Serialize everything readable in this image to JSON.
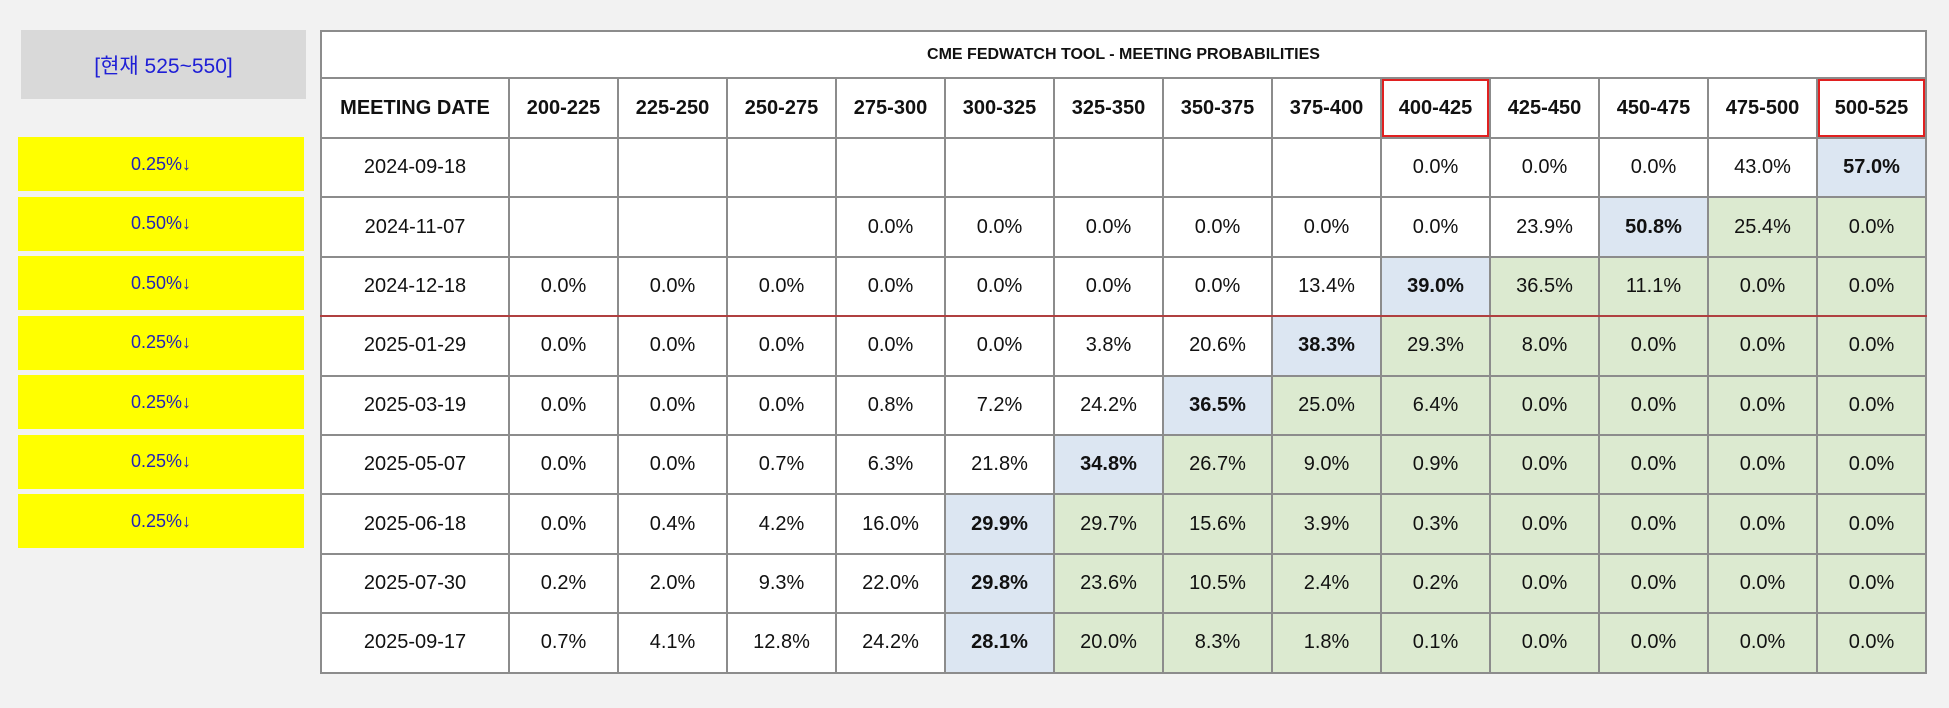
{
  "current_label": "[현재 525~550]",
  "cuts": [
    "0.25%↓",
    "0.50%↓",
    "0.50%↓",
    "0.25%↓",
    "0.25%↓",
    "0.25%↓",
    "0.25%↓"
  ],
  "table": {
    "title": "CME FEDWATCH TOOL - MEETING PROBABILITIES",
    "date_header": "MEETING DATE",
    "ranges": [
      "200-225",
      "225-250",
      "250-275",
      "275-300",
      "300-325",
      "325-350",
      "350-375",
      "375-400",
      "400-425",
      "425-450",
      "450-475",
      "475-500",
      "500-525"
    ],
    "rows": [
      {
        "date": "2024-09-18",
        "cells": [
          "",
          "",
          "",
          "",
          "",
          "",
          "",
          "",
          "0.0%",
          "0.0%",
          "0.0%",
          "43.0%",
          "57.0%"
        ]
      },
      {
        "date": "2024-11-07",
        "cells": [
          "",
          "",
          "",
          "0.0%",
          "0.0%",
          "0.0%",
          "0.0%",
          "0.0%",
          "0.0%",
          "23.9%",
          "50.8%",
          "25.4%",
          "0.0%"
        ]
      },
      {
        "date": "2024-12-18",
        "cells": [
          "0.0%",
          "0.0%",
          "0.0%",
          "0.0%",
          "0.0%",
          "0.0%",
          "0.0%",
          "13.4%",
          "39.0%",
          "36.5%",
          "11.1%",
          "0.0%",
          "0.0%"
        ]
      },
      {
        "date": "2025-01-29",
        "cells": [
          "0.0%",
          "0.0%",
          "0.0%",
          "0.0%",
          "0.0%",
          "3.8%",
          "20.6%",
          "38.3%",
          "29.3%",
          "8.0%",
          "0.0%",
          "0.0%",
          "0.0%"
        ]
      },
      {
        "date": "2025-03-19",
        "cells": [
          "0.0%",
          "0.0%",
          "0.0%",
          "0.8%",
          "7.2%",
          "24.2%",
          "36.5%",
          "25.0%",
          "6.4%",
          "0.0%",
          "0.0%",
          "0.0%",
          "0.0%"
        ]
      },
      {
        "date": "2025-05-07",
        "cells": [
          "0.0%",
          "0.0%",
          "0.7%",
          "6.3%",
          "21.8%",
          "34.8%",
          "26.7%",
          "9.0%",
          "0.9%",
          "0.0%",
          "0.0%",
          "0.0%",
          "0.0%"
        ]
      },
      {
        "date": "2025-06-18",
        "cells": [
          "0.0%",
          "0.4%",
          "4.2%",
          "16.0%",
          "29.9%",
          "29.7%",
          "15.6%",
          "3.9%",
          "0.3%",
          "0.0%",
          "0.0%",
          "0.0%",
          "0.0%"
        ]
      },
      {
        "date": "2025-07-30",
        "cells": [
          "0.2%",
          "2.0%",
          "9.3%",
          "22.0%",
          "29.8%",
          "23.6%",
          "10.5%",
          "2.4%",
          "0.2%",
          "0.0%",
          "0.0%",
          "0.0%",
          "0.0%"
        ]
      },
      {
        "date": "2025-09-17",
        "cells": [
          "0.7%",
          "4.1%",
          "12.8%",
          "24.2%",
          "28.1%",
          "20.0%",
          "8.3%",
          "1.8%",
          "0.1%",
          "0.0%",
          "0.0%",
          "0.0%",
          "0.0%"
        ]
      }
    ]
  },
  "colors": {
    "highlight_blue": "#dce6f2",
    "green": "#dcead0",
    "yellow": "#ffff00",
    "red_outline": "#e02020"
  }
}
